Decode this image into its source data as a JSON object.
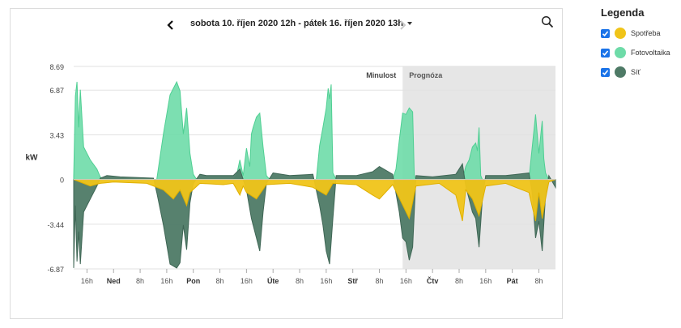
{
  "header": {
    "range_label": "sobota 10. říjen 2020 12h - pátek 16. říjen 2020 13h"
  },
  "legend": {
    "title": "Legenda",
    "items": [
      {
        "label": "Spotřeba",
        "color": "#f0c419",
        "checked": true
      },
      {
        "label": "Fotovoltaika",
        "color": "#6edba8",
        "checked": true
      },
      {
        "label": "Síť",
        "color": "#4e7a66",
        "checked": true
      }
    ]
  },
  "chart_data": {
    "type": "area",
    "ylabel": "kW",
    "yticks": [
      "8.69",
      "6.87",
      "3.43",
      "0",
      "-3.44",
      "-6.87"
    ],
    "ylim": [
      -6.87,
      8.69
    ],
    "xticks": [
      "16h",
      "Ned",
      "8h",
      "16h",
      "Pon",
      "8h",
      "16h",
      "Úte",
      "8h",
      "16h",
      "Stř",
      "8h",
      "16h",
      "Čtv",
      "8h",
      "16h",
      "Pát",
      "8h"
    ],
    "x_range_hours": [
      0,
      145
    ],
    "past_label": "Minulost",
    "forecast_label": "Prognóza",
    "forecast_start_hour": 99,
    "grid": true,
    "series": [
      {
        "name": "Fotovoltaika",
        "color": "#6edba8",
        "points": [
          [
            0,
            0.2
          ],
          [
            0.5,
            6.4
          ],
          [
            1,
            7.5
          ],
          [
            1.5,
            4.0
          ],
          [
            2,
            6.9
          ],
          [
            3,
            2.5
          ],
          [
            5,
            1.5
          ],
          [
            7,
            0.8
          ],
          [
            8,
            0.2
          ],
          [
            9,
            0
          ],
          [
            25,
            0
          ],
          [
            27,
            3.5
          ],
          [
            29,
            6.5
          ],
          [
            31,
            7.5
          ],
          [
            32,
            6.8
          ],
          [
            33,
            3.5
          ],
          [
            34,
            5.5
          ],
          [
            35,
            2.0
          ],
          [
            36,
            0.4
          ],
          [
            37,
            0
          ],
          [
            48,
            0
          ],
          [
            49,
            0.3
          ],
          [
            50,
            1.5
          ],
          [
            51,
            0.3
          ],
          [
            52,
            2.4
          ],
          [
            53,
            1.0
          ],
          [
            53.5,
            3.5
          ],
          [
            54,
            4.0
          ],
          [
            55,
            4.8
          ],
          [
            56,
            5.1
          ],
          [
            57,
            2.5
          ],
          [
            58,
            0.3
          ],
          [
            59,
            0
          ],
          [
            73,
            0
          ],
          [
            74,
            2.6
          ],
          [
            75,
            4.0
          ],
          [
            76,
            5.5
          ],
          [
            76.6,
            7.0
          ],
          [
            77,
            6.2
          ],
          [
            77.5,
            7.3
          ],
          [
            78,
            0.5
          ],
          [
            79,
            0
          ],
          [
            96,
            0
          ],
          [
            97,
            0.8
          ],
          [
            98,
            3.0
          ],
          [
            99,
            5.1
          ],
          [
            100,
            5.0
          ],
          [
            101,
            5.5
          ],
          [
            102,
            5.2
          ],
          [
            102.5,
            0.3
          ],
          [
            103,
            0
          ],
          [
            117,
            0
          ],
          [
            118,
            1.0
          ],
          [
            119,
            1.5
          ],
          [
            120,
            2.5
          ],
          [
            121,
            2.8
          ],
          [
            121.5,
            2.2
          ],
          [
            122,
            4.0
          ],
          [
            122.5,
            0.3
          ],
          [
            123,
            0
          ],
          [
            137,
            0
          ],
          [
            138,
            2.5
          ],
          [
            139,
            5.0
          ],
          [
            140,
            2.0
          ],
          [
            141,
            4.5
          ],
          [
            141.5,
            1.6
          ],
          [
            142,
            0.5
          ],
          [
            143,
            0
          ]
        ]
      },
      {
        "name": "Spotřeba",
        "color": "#f0c419",
        "points": [
          [
            0,
            0
          ],
          [
            5,
            -0.5
          ],
          [
            8,
            -0.3
          ],
          [
            12,
            -0.2
          ],
          [
            22,
            -0.3
          ],
          [
            27,
            -0.8
          ],
          [
            30,
            -1.5
          ],
          [
            32,
            -0.8
          ],
          [
            34,
            -2.0
          ],
          [
            35,
            -1.0
          ],
          [
            38,
            -0.3
          ],
          [
            45,
            -0.4
          ],
          [
            48,
            -0.3
          ],
          [
            50,
            -1.2
          ],
          [
            51,
            -0.5
          ],
          [
            52,
            -1.0
          ],
          [
            55,
            -1.5
          ],
          [
            58,
            -0.4
          ],
          [
            65,
            -0.3
          ],
          [
            72,
            -0.6
          ],
          [
            76,
            -1.2
          ],
          [
            78,
            -0.3
          ],
          [
            85,
            -0.4
          ],
          [
            90,
            -1.2
          ],
          [
            92,
            -1.5
          ],
          [
            96,
            -0.4
          ],
          [
            101,
            -3.0
          ],
          [
            103,
            -0.5
          ],
          [
            110,
            -0.3
          ],
          [
            115,
            -1.2
          ],
          [
            117,
            -3.2
          ],
          [
            118,
            -0.8
          ],
          [
            120,
            -1.5
          ],
          [
            122,
            -2.8
          ],
          [
            124,
            -0.5
          ],
          [
            130,
            -0.3
          ],
          [
            137,
            -1.0
          ],
          [
            139,
            -3.2
          ],
          [
            140,
            -1.0
          ],
          [
            141,
            -3.0
          ],
          [
            142,
            -1.5
          ],
          [
            143,
            -0.2
          ],
          [
            145,
            0
          ]
        ]
      },
      {
        "name": "Síť",
        "color": "#4e7a66",
        "points": [
          [
            0,
            -6.8
          ],
          [
            0.5,
            -2.0
          ],
          [
            1,
            -6.3
          ],
          [
            1.5,
            -4.0
          ],
          [
            2,
            -6.5
          ],
          [
            3,
            -2.5
          ],
          [
            5,
            -1.5
          ],
          [
            7,
            -0.5
          ],
          [
            8,
            0.1
          ],
          [
            10,
            0.3
          ],
          [
            14,
            0.2
          ],
          [
            24,
            0.1
          ],
          [
            25,
            -1.0
          ],
          [
            27,
            -3.5
          ],
          [
            29,
            -6.5
          ],
          [
            31,
            -6.8
          ],
          [
            32,
            -6.4
          ],
          [
            33,
            -3.5
          ],
          [
            34,
            -5.4
          ],
          [
            35,
            -1.8
          ],
          [
            36,
            -0.3
          ],
          [
            38,
            0.4
          ],
          [
            40,
            0.3
          ],
          [
            48,
            0.3
          ],
          [
            50,
            0.8
          ],
          [
            52,
            -0.8
          ],
          [
            53.5,
            -3.0
          ],
          [
            55,
            -4.5
          ],
          [
            56,
            -5.5
          ],
          [
            57,
            -2.5
          ],
          [
            58,
            -0.3
          ],
          [
            60,
            0.5
          ],
          [
            65,
            0.3
          ],
          [
            72,
            0.4
          ],
          [
            74,
            -2.0
          ],
          [
            75,
            -3.5
          ],
          [
            76,
            -5.5
          ],
          [
            77,
            -6.5
          ],
          [
            78,
            -3.0
          ],
          [
            79,
            0.3
          ],
          [
            85,
            0.3
          ],
          [
            90,
            0.6
          ],
          [
            92,
            1.0
          ],
          [
            96,
            0.4
          ],
          [
            98,
            -2.5
          ],
          [
            99,
            -4.5
          ],
          [
            100,
            -4.8
          ],
          [
            101,
            -6.2
          ],
          [
            102,
            -5.2
          ],
          [
            103,
            0.3
          ],
          [
            108,
            0.2
          ],
          [
            115,
            0.4
          ],
          [
            117,
            1.2
          ],
          [
            118,
            -0.5
          ],
          [
            120,
            -2.5
          ],
          [
            121,
            -3.0
          ],
          [
            122,
            -5.2
          ],
          [
            123,
            -1.5
          ],
          [
            124,
            0.3
          ],
          [
            130,
            0.3
          ],
          [
            137,
            0.5
          ],
          [
            138,
            -1.0
          ],
          [
            139,
            -4.5
          ],
          [
            140,
            -3.2
          ],
          [
            141,
            -5.5
          ],
          [
            142,
            -1.2
          ],
          [
            143,
            0.3
          ],
          [
            145,
            -0.6
          ]
        ]
      }
    ]
  }
}
